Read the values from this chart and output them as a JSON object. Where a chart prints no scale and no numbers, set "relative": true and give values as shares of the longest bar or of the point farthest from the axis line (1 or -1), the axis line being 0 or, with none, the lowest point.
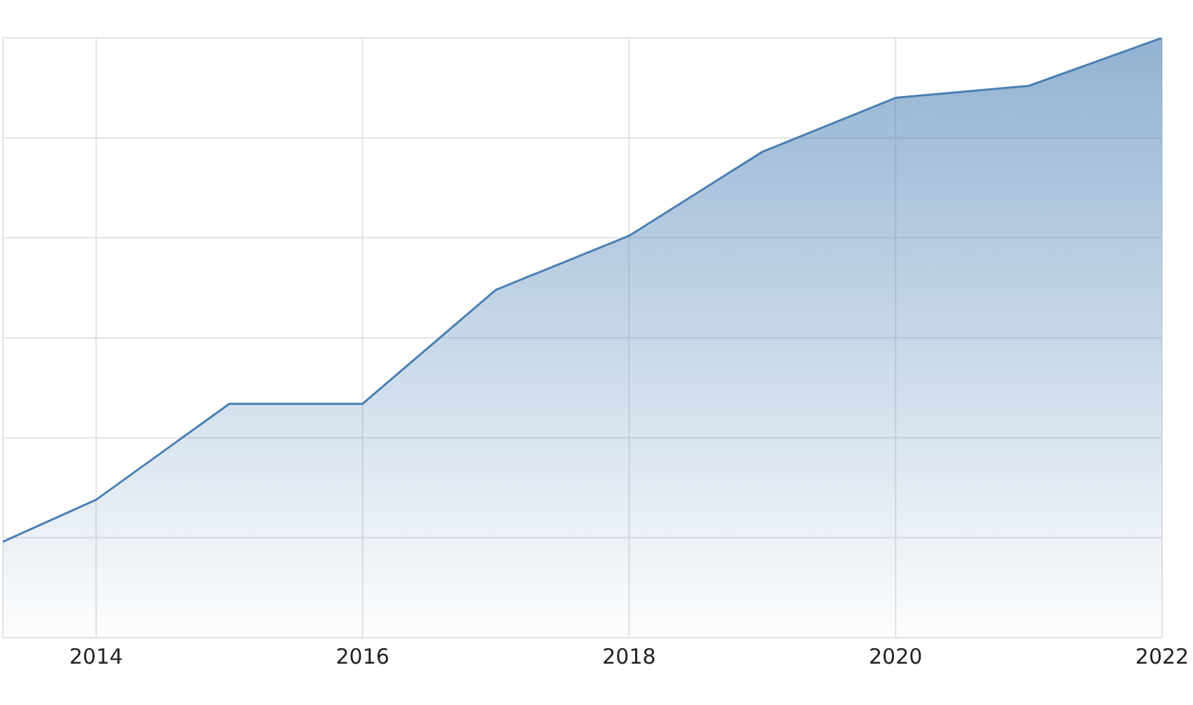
{
  "chart_data": {
    "type": "area",
    "relative": true,
    "x": [
      2013.3,
      2014,
      2015,
      2016,
      2017,
      2018,
      2019,
      2020,
      2021,
      2022
    ],
    "values": [
      0.16,
      0.23,
      0.39,
      0.39,
      0.58,
      0.67,
      0.81,
      0.9,
      0.92,
      1
    ],
    "color": "#4a7fb3",
    "xlim": [
      2013.3,
      2022
    ],
    "xticks": [
      2014,
      2016,
      2018,
      2020,
      2022
    ],
    "grid": true
  }
}
